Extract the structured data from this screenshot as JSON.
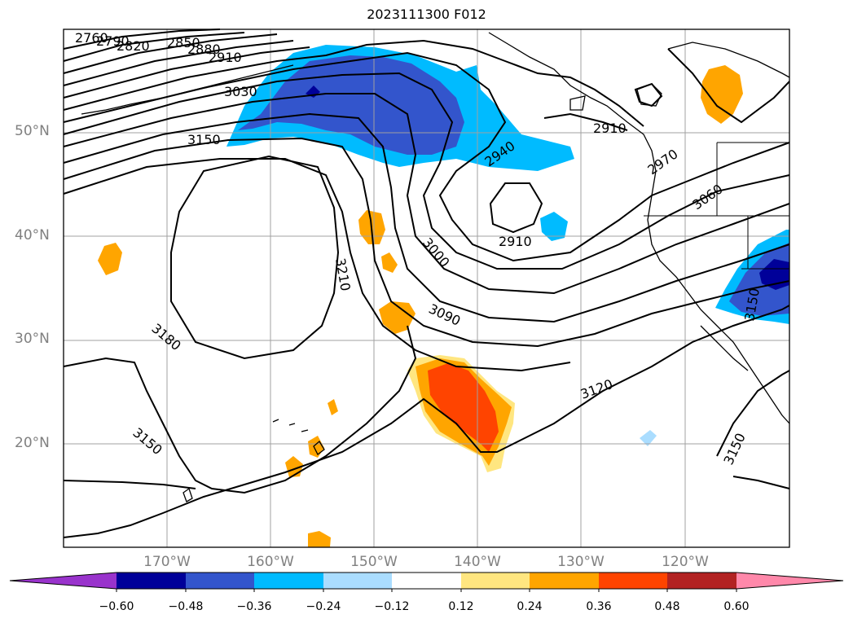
{
  "title": "2023111300 F012",
  "lat_labels": [
    "50°N",
    "40°N",
    "30°N",
    "20°N"
  ],
  "lon_labels": [
    "170°W",
    "160°W",
    "150°W",
    "140°W",
    "130°W",
    "120°W"
  ],
  "colorbar": {
    "ticks": [
      "−0.60",
      "−0.48",
      "−0.36",
      "−0.24",
      "−0.12",
      "0.12",
      "0.24",
      "0.36",
      "0.48",
      "0.60"
    ],
    "colors": [
      "#9933cc",
      "#000099",
      "#3355cc",
      "#00bbff",
      "#aaddff",
      "#ffffff",
      "#ffe680",
      "#ffa500",
      "#ff4400",
      "#b22222",
      "#ff88aa"
    ]
  },
  "contour_labels": [
    "2760",
    "2790",
    "2820",
    "2850",
    "2880",
    "2910",
    "3030",
    "3150",
    "2940",
    "2910",
    "2970",
    "3060",
    "2910",
    "3000",
    "3210",
    "3090",
    "3180",
    "3120",
    "3150",
    "3150",
    "3150"
  ],
  "colors": {
    "contour": "#000000",
    "grid": "#a0a0a0"
  }
}
